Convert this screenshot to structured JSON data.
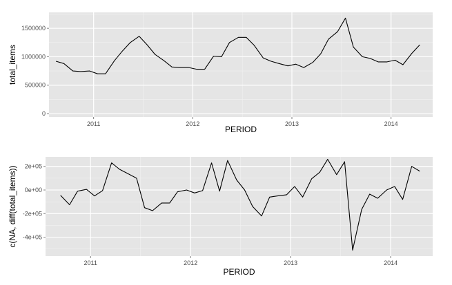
{
  "colors": {
    "panel_background": "#e5e5e5",
    "grid_major": "#ffffff",
    "grid_minor": "#f2f2f2",
    "line": "#000000",
    "tick_text": "#4d4d4d",
    "axis_title": "#000000"
  },
  "chart_data": [
    {
      "type": "line",
      "title": "",
      "xlabel": "PERIOD",
      "ylabel": "total_items",
      "grid": true,
      "xlim": [
        2010.55,
        2014.42
      ],
      "ylim": [
        -60000,
        1780000
      ],
      "x_ticks": [
        2011,
        2012,
        2013,
        2014
      ],
      "x_tick_labels": [
        "2011",
        "2012",
        "2013",
        "2014"
      ],
      "y_ticks": [
        0,
        500000,
        1000000,
        1500000
      ],
      "y_tick_labels": [
        "0",
        "500000",
        "1000000",
        "1500000"
      ],
      "x": [
        2010.62,
        2010.7,
        2010.79,
        2010.87,
        2010.96,
        2011.04,
        2011.12,
        2011.21,
        2011.29,
        2011.37,
        2011.46,
        2011.54,
        2011.62,
        2011.71,
        2011.79,
        2011.87,
        2011.96,
        2012.04,
        2012.12,
        2012.21,
        2012.29,
        2012.37,
        2012.46,
        2012.54,
        2012.62,
        2012.71,
        2012.79,
        2012.87,
        2012.96,
        2013.04,
        2013.12,
        2013.21,
        2013.29,
        2013.37,
        2013.46,
        2013.54,
        2013.62,
        2013.71,
        2013.79,
        2013.87,
        2013.96,
        2014.04,
        2014.12,
        2014.21,
        2014.29
      ],
      "values": [
        920000,
        880000,
        750000,
        740000,
        750000,
        700000,
        700000,
        930000,
        1100000,
        1250000,
        1360000,
        1210000,
        1040000,
        930000,
        820000,
        810000,
        810000,
        780000,
        780000,
        1010000,
        1000000,
        1250000,
        1340000,
        1340000,
        1200000,
        980000,
        920000,
        880000,
        840000,
        870000,
        810000,
        900000,
        1050000,
        1310000,
        1440000,
        1680000,
        1170000,
        1000000,
        970000,
        910000,
        910000,
        940000,
        860000,
        1060000,
        1210000
      ]
    },
    {
      "type": "line",
      "title": "",
      "xlabel": "PERIOD",
      "ylabel": "c(NA, diff(total_items))",
      "grid": true,
      "xlim": [
        2010.55,
        2014.42
      ],
      "ylim": [
        -560000,
        280000
      ],
      "x_ticks": [
        2011,
        2012,
        2013,
        2014
      ],
      "x_tick_labels": [
        "2011",
        "2012",
        "2013",
        "2014"
      ],
      "y_ticks": [
        -400000,
        -200000,
        0,
        200000
      ],
      "y_tick_labels": [
        "-4e+05",
        "-2e+05",
        "0e+00",
        "2e+05"
      ],
      "x": [
        2010.7,
        2010.79,
        2010.87,
        2010.96,
        2011.04,
        2011.12,
        2011.21,
        2011.29,
        2011.37,
        2011.46,
        2011.54,
        2011.62,
        2011.71,
        2011.79,
        2011.87,
        2011.96,
        2012.04,
        2012.12,
        2012.21,
        2012.29,
        2012.37,
        2012.46,
        2012.54,
        2012.62,
        2012.71,
        2012.79,
        2012.87,
        2012.96,
        2013.04,
        2013.12,
        2013.21,
        2013.29,
        2013.37,
        2013.46,
        2013.54,
        2013.62,
        2013.71,
        2013.79,
        2013.87,
        2013.96,
        2014.04,
        2014.12,
        2014.21,
        2014.29
      ],
      "values": [
        -45000,
        -125000,
        -10000,
        5000,
        -50000,
        -5000,
        230000,
        175000,
        140000,
        100000,
        -150000,
        -175000,
        -110000,
        -110000,
        -15000,
        0,
        -25000,
        -5000,
        230000,
        -10000,
        250000,
        85000,
        0,
        -140000,
        -220000,
        -60000,
        -50000,
        -40000,
        30000,
        -60000,
        95000,
        150000,
        260000,
        130000,
        240000,
        -510000,
        -165000,
        -35000,
        -70000,
        0,
        30000,
        -80000,
        200000,
        160000
      ]
    }
  ]
}
